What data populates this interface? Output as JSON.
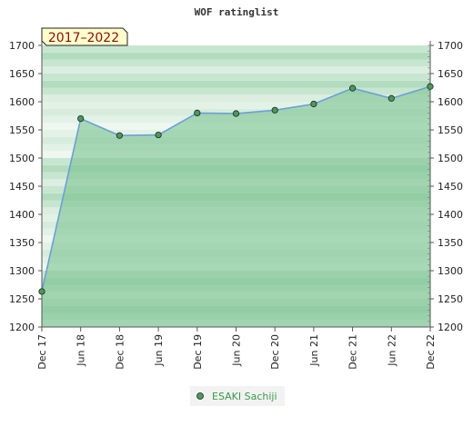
{
  "chart_data": {
    "type": "area",
    "title": "WOF ratinglist",
    "period_badge": "2017–2022",
    "xlabel": "",
    "ylabel": "",
    "x": [
      "Dec 17",
      "Jun 18",
      "Dec 18",
      "Jun 19",
      "Dec 19",
      "Jun 20",
      "Dec 20",
      "Jun 21",
      "Dec 21",
      "Jun 22",
      "Dec 22"
    ],
    "ylim": [
      1200,
      1700
    ],
    "yticks": [
      1200,
      1250,
      1300,
      1350,
      1400,
      1450,
      1500,
      1550,
      1600,
      1650,
      1700
    ],
    "grid": true,
    "legend_position": "bottom-center",
    "series": [
      {
        "name": "ESAKI Sachiji",
        "values": [
          1263,
          1570,
          1540,
          1541,
          1580,
          1579,
          1585,
          1596,
          1624,
          1606,
          1627
        ]
      }
    ],
    "colors": {
      "line": "#6aa0d8",
      "fill": "#7cc391",
      "marker": "#4a9a5a",
      "badge_bg": "#ffffcc",
      "badge_text": "#8a0d0d",
      "legend_text": "#3a9a4a"
    }
  }
}
